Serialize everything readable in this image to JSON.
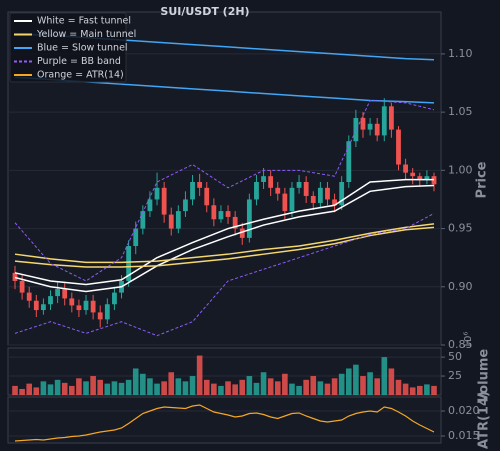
{
  "chart_data": [
    {
      "type": "candlestick",
      "title": "SUI/USDT (2H)",
      "ylabel": "Price",
      "ylim": [
        0.85,
        1.136
      ],
      "yticks": [
        0.85,
        {
          "value": 0.9,
          "label": "0.90"
        },
        {
          "value": 0.95,
          "label": "0.95"
        },
        {
          "value": 1.0,
          "label": "1.00"
        },
        {
          "value": 1.05,
          "label": "1.05"
        },
        {
          "value": 1.1,
          "label": "1.10"
        }
      ],
      "grid": true,
      "up_color": "#26a69a",
      "down_color": "#ef5350",
      "open": [
        0.912,
        0.905,
        0.895,
        0.888,
        0.88,
        0.885,
        0.892,
        0.898,
        0.89,
        0.884,
        0.88,
        0.888,
        0.878,
        0.872,
        0.885,
        0.895,
        0.905,
        0.935,
        0.95,
        0.965,
        0.975,
        0.985,
        0.962,
        0.95,
        0.965,
        0.975,
        0.99,
        0.985,
        0.97,
        0.958,
        0.965,
        0.96,
        0.95,
        0.942,
        0.975,
        0.99,
        0.995,
        0.985,
        0.98,
        0.965,
        0.985,
        0.99,
        0.978,
        0.972,
        0.985,
        0.975,
        0.97,
        0.99,
        1.025,
        1.045,
        1.035,
        1.04,
        1.03,
        1.055,
        1.035,
        1.005,
        0.998,
        0.995,
        0.992,
        0.995
      ],
      "high": [
        0.918,
        0.91,
        0.9,
        0.893,
        0.89,
        0.897,
        0.904,
        0.903,
        0.895,
        0.889,
        0.893,
        0.893,
        0.884,
        0.89,
        0.9,
        0.91,
        0.94,
        0.956,
        0.97,
        0.982,
        0.998,
        0.99,
        0.968,
        0.97,
        0.982,
        0.996,
        0.997,
        0.99,
        0.976,
        0.97,
        0.97,
        0.965,
        0.955,
        0.98,
        0.996,
        1.002,
        1.0,
        0.99,
        0.985,
        0.99,
        0.996,
        0.995,
        0.982,
        0.99,
        0.99,
        0.98,
        0.995,
        1.03,
        1.052,
        1.05,
        1.045,
        1.045,
        1.062,
        1.058,
        1.038,
        1.01,
        1.002,
        0.998,
        1.0,
        0.998
      ],
      "low": [
        0.898,
        0.889,
        0.882,
        0.874,
        0.876,
        0.88,
        0.886,
        0.884,
        0.878,
        0.874,
        0.876,
        0.872,
        0.865,
        0.868,
        0.88,
        0.89,
        0.9,
        0.928,
        0.945,
        0.96,
        0.97,
        0.955,
        0.944,
        0.946,
        0.96,
        0.97,
        0.978,
        0.964,
        0.952,
        0.955,
        0.954,
        0.944,
        0.936,
        0.938,
        0.97,
        0.984,
        0.978,
        0.974,
        0.958,
        0.96,
        0.98,
        0.972,
        0.966,
        0.968,
        0.97,
        0.964,
        0.966,
        0.985,
        1.02,
        1.028,
        1.03,
        1.025,
        1.025,
        1.028,
        1.0,
        0.992,
        0.988,
        0.986,
        0.988,
        0.982
      ],
      "close": [
        0.905,
        0.895,
        0.888,
        0.88,
        0.885,
        0.892,
        0.898,
        0.89,
        0.884,
        0.88,
        0.888,
        0.878,
        0.872,
        0.885,
        0.895,
        0.905,
        0.935,
        0.95,
        0.965,
        0.975,
        0.985,
        0.962,
        0.95,
        0.965,
        0.975,
        0.99,
        0.985,
        0.97,
        0.958,
        0.965,
        0.96,
        0.95,
        0.942,
        0.975,
        0.99,
        0.995,
        0.985,
        0.98,
        0.965,
        0.985,
        0.99,
        0.978,
        0.972,
        0.985,
        0.975,
        0.97,
        0.99,
        1.025,
        1.045,
        1.035,
        1.04,
        1.03,
        1.055,
        1.035,
        1.005,
        0.998,
        0.995,
        0.992,
        0.995,
        0.988
      ],
      "overlays": {
        "x": [
          0,
          5,
          10,
          15,
          20,
          25,
          30,
          35,
          40,
          45,
          50,
          55,
          59
        ],
        "series": [
          {
            "color": "#ffffff",
            "dashed": false,
            "values": [
              0.912,
              0.905,
              0.902,
              0.906,
              0.925,
              0.938,
              0.95,
              0.958,
              0.965,
              0.97,
              0.99,
              0.992,
              0.992
            ]
          },
          {
            "color": "#ffffff",
            "dashed": false,
            "values": [
              0.908,
              0.9,
              0.896,
              0.9,
              0.918,
              0.932,
              0.943,
              0.953,
              0.96,
              0.965,
              0.982,
              0.986,
              0.987
            ]
          },
          {
            "color": "#f5d76e",
            "dashed": false,
            "values": [
              0.928,
              0.924,
              0.921,
              0.921,
              0.922,
              0.925,
              0.928,
              0.932,
              0.935,
              0.94,
              0.946,
              0.951,
              0.954
            ]
          },
          {
            "color": "#f5d76e",
            "dashed": false,
            "values": [
              0.922,
              0.919,
              0.917,
              0.917,
              0.918,
              0.921,
              0.924,
              0.928,
              0.932,
              0.937,
              0.944,
              0.949,
              0.951
            ]
          },
          {
            "color": "#42a5f5",
            "dashed": false,
            "values": [
              1.117,
              1.116,
              1.114,
              1.112,
              1.11,
              1.108,
              1.106,
              1.104,
              1.102,
              1.1,
              1.098,
              1.096,
              1.095
            ]
          },
          {
            "color": "#42a5f5",
            "dashed": false,
            "values": [
              1.08,
              1.078,
              1.076,
              1.074,
              1.072,
              1.07,
              1.068,
              1.066,
              1.064,
              1.062,
              1.06,
              1.059,
              1.058
            ]
          },
          {
            "color": "#8e5cf7",
            "dashed": true,
            "values": [
              0.955,
              0.92,
              0.905,
              0.925,
              0.99,
              1.005,
              0.985,
              1.0,
              1.0,
              0.995,
              1.06,
              1.058,
              1.052
            ]
          },
          {
            "color": "#8e5cf7",
            "dashed": true,
            "values": [
              0.86,
              0.87,
              0.86,
              0.87,
              0.858,
              0.87,
              0.905,
              0.915,
              0.925,
              0.935,
              0.945,
              0.95,
              0.963
            ]
          }
        ]
      },
      "legend": [
        {
          "label": "White = Fast tunnel",
          "color": "#ffffff",
          "dashed": false
        },
        {
          "label": "Yellow = Main tunnel",
          "color": "#f5d76e",
          "dashed": false
        },
        {
          "label": "Blue = Slow tunnel",
          "color": "#42a5f5",
          "dashed": false
        },
        {
          "label": "Purple = BB band",
          "color": "#8e5cf7",
          "dashed": true
        },
        {
          "label": "Orange = ATR(14)",
          "color": "#f5a623",
          "dashed": false
        }
      ]
    },
    {
      "type": "bar",
      "ylabel": "Volume",
      "offset_label": "10⁶",
      "ylim": [
        0,
        62
      ],
      "yticks": [
        25,
        50
      ],
      "grid": true,
      "values": [
        12,
        8,
        15,
        10,
        18,
        14,
        20,
        16,
        12,
        22,
        18,
        25,
        20,
        15,
        18,
        16,
        20,
        35,
        28,
        22,
        15,
        18,
        30,
        22,
        18,
        25,
        52,
        20,
        15,
        12,
        18,
        14,
        20,
        25,
        16,
        30,
        22,
        18,
        28,
        15,
        12,
        20,
        25,
        18,
        15,
        22,
        28,
        35,
        40,
        25,
        30,
        22,
        50,
        35,
        20,
        15,
        10,
        12,
        14,
        12
      ]
    },
    {
      "type": "line",
      "ylabel": "ATR(14)",
      "color": "#f5a623",
      "ylim": [
        0.0136,
        0.0228
      ],
      "yticks": [
        0.015,
        {
          "value": 0.02,
          "label": "0.020"
        }
      ],
      "grid": true,
      "values": [
        0.014,
        0.0141,
        0.0142,
        0.0143,
        0.0142,
        0.0144,
        0.0146,
        0.0147,
        0.0149,
        0.015,
        0.0152,
        0.0155,
        0.0158,
        0.016,
        0.0162,
        0.0166,
        0.0175,
        0.0185,
        0.0195,
        0.02,
        0.0205,
        0.0208,
        0.0207,
        0.0206,
        0.0205,
        0.021,
        0.0212,
        0.0205,
        0.0198,
        0.0195,
        0.0192,
        0.0188,
        0.019,
        0.0195,
        0.0196,
        0.0193,
        0.0188,
        0.0185,
        0.019,
        0.0195,
        0.0196,
        0.019,
        0.0185,
        0.018,
        0.0178,
        0.018,
        0.0182,
        0.019,
        0.0195,
        0.0198,
        0.02,
        0.0198,
        0.0208,
        0.0205,
        0.0198,
        0.019,
        0.018,
        0.0172,
        0.0165,
        0.0158
      ]
    }
  ]
}
